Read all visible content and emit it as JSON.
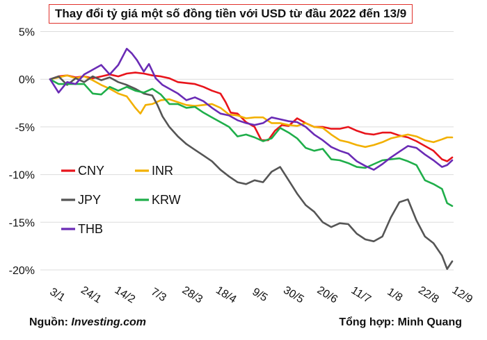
{
  "title": "Thay đổi tỷ giá một số đồng tiền với USD từ đầu 2022 đến 13/9",
  "footer": {
    "source_label": "Nguồn: ",
    "source_name": "Investing.com",
    "credit": "Tổng hợp: Minh Quang"
  },
  "chart_data": {
    "type": "line",
    "title": "Thay đổi tỷ giá một số đồng tiền với USD từ đầu 2022 đến 13/9",
    "xlabel": "",
    "ylabel": "",
    "x_ticks": [
      "3/1",
      "24/1",
      "14/2",
      "7/3",
      "28/3",
      "18/4",
      "9/5",
      "30/5",
      "20/6",
      "11/7",
      "1/8",
      "22/8",
      "12/9"
    ],
    "y_ticks": [
      "5%",
      "0%",
      "-5%",
      "-10%",
      "-15%",
      "-20%"
    ],
    "ylim": [
      -21,
      5
    ],
    "grid": "horizontal",
    "legend_position": "lower-left",
    "series": [
      {
        "name": "CNY",
        "color": "#e8141b",
        "points": [
          [
            0,
            0
          ],
          [
            5,
            0.3
          ],
          [
            10,
            0.4
          ],
          [
            15,
            0.2
          ],
          [
            20,
            0.3
          ],
          [
            25,
            0.1
          ],
          [
            30,
            0.3
          ],
          [
            35,
            0.5
          ],
          [
            40,
            0.3
          ],
          [
            45,
            0.6
          ],
          [
            50,
            0.7
          ],
          [
            55,
            0.6
          ],
          [
            60,
            0.4
          ],
          [
            65,
            0.3
          ],
          [
            70,
            0.1
          ],
          [
            75,
            -0.3
          ],
          [
            80,
            -0.4
          ],
          [
            85,
            -0.5
          ],
          [
            90,
            -0.8
          ],
          [
            95,
            -1.2
          ],
          [
            100,
            -1.5
          ],
          [
            103,
            -2.4
          ],
          [
            106,
            -3.5
          ],
          [
            110,
            -3.6
          ],
          [
            115,
            -4.5
          ],
          [
            120,
            -5.0
          ],
          [
            124,
            -6.4
          ],
          [
            128,
            -6.4
          ],
          [
            132,
            -5.4
          ],
          [
            136,
            -4.8
          ],
          [
            140,
            -4.9
          ],
          [
            145,
            -4.1
          ],
          [
            150,
            -4.6
          ],
          [
            155,
            -5.0
          ],
          [
            160,
            -5.0
          ],
          [
            165,
            -5.2
          ],
          [
            170,
            -5.2
          ],
          [
            175,
            -5.0
          ],
          [
            180,
            -5.4
          ],
          [
            185,
            -5.7
          ],
          [
            190,
            -5.8
          ],
          [
            195,
            -5.6
          ],
          [
            200,
            -5.6
          ],
          [
            205,
            -5.9
          ],
          [
            210,
            -6.1
          ],
          [
            215,
            -6.5
          ],
          [
            220,
            -7.0
          ],
          [
            225,
            -7.5
          ],
          [
            230,
            -8.4
          ],
          [
            233,
            -8.6
          ],
          [
            236,
            -8.2
          ]
        ]
      },
      {
        "name": "INR",
        "color": "#f2b000",
        "points": [
          [
            0,
            0
          ],
          [
            5,
            0.2
          ],
          [
            10,
            0.4
          ],
          [
            15,
            0.1
          ],
          [
            20,
            0.3
          ],
          [
            25,
            -0.1
          ],
          [
            30,
            -0.6
          ],
          [
            35,
            -1.0
          ],
          [
            40,
            -1.5
          ],
          [
            45,
            -1.8
          ],
          [
            50,
            -3.0
          ],
          [
            53,
            -3.6
          ],
          [
            56,
            -2.7
          ],
          [
            60,
            -2.6
          ],
          [
            65,
            -2.2
          ],
          [
            70,
            -2.1
          ],
          [
            75,
            -2.4
          ],
          [
            80,
            -2.7
          ],
          [
            85,
            -2.8
          ],
          [
            90,
            -2.7
          ],
          [
            95,
            -2.6
          ],
          [
            100,
            -3.0
          ],
          [
            105,
            -3.7
          ],
          [
            110,
            -3.8
          ],
          [
            115,
            -4.1
          ],
          [
            120,
            -4.0
          ],
          [
            125,
            -4.0
          ],
          [
            130,
            -4.6
          ],
          [
            135,
            -4.6
          ],
          [
            140,
            -4.8
          ],
          [
            145,
            -4.9
          ],
          [
            150,
            -4.6
          ],
          [
            155,
            -5.0
          ],
          [
            160,
            -5.1
          ],
          [
            165,
            -5.8
          ],
          [
            170,
            -6.4
          ],
          [
            175,
            -6.6
          ],
          [
            180,
            -6.9
          ],
          [
            185,
            -7.1
          ],
          [
            190,
            -6.9
          ],
          [
            195,
            -6.6
          ],
          [
            200,
            -6.2
          ],
          [
            205,
            -6.0
          ],
          [
            210,
            -5.8
          ],
          [
            215,
            -6.0
          ],
          [
            220,
            -6.4
          ],
          [
            225,
            -6.6
          ],
          [
            230,
            -6.3
          ],
          [
            233,
            -6.1
          ],
          [
            236,
            -6.1
          ]
        ]
      },
      {
        "name": "JPY",
        "color": "#555555",
        "points": [
          [
            0,
            0
          ],
          [
            5,
            0.3
          ],
          [
            10,
            -0.6
          ],
          [
            15,
            0.1
          ],
          [
            20,
            -0.3
          ],
          [
            25,
            0.3
          ],
          [
            30,
            -0.1
          ],
          [
            35,
            0.2
          ],
          [
            40,
            -0.3
          ],
          [
            45,
            -0.6
          ],
          [
            50,
            -1.0
          ],
          [
            55,
            -1.5
          ],
          [
            60,
            -1.7
          ],
          [
            63,
            -2.7
          ],
          [
            66,
            -3.9
          ],
          [
            70,
            -5.0
          ],
          [
            75,
            -6.0
          ],
          [
            80,
            -6.8
          ],
          [
            85,
            -7.4
          ],
          [
            90,
            -8.0
          ],
          [
            95,
            -8.6
          ],
          [
            100,
            -9.5
          ],
          [
            105,
            -10.2
          ],
          [
            110,
            -10.8
          ],
          [
            115,
            -11.0
          ],
          [
            120,
            -10.6
          ],
          [
            125,
            -10.8
          ],
          [
            130,
            -9.7
          ],
          [
            135,
            -9.2
          ],
          [
            140,
            -10.6
          ],
          [
            145,
            -12.0
          ],
          [
            150,
            -13.2
          ],
          [
            155,
            -13.9
          ],
          [
            160,
            -15.0
          ],
          [
            165,
            -15.5
          ],
          [
            170,
            -15.1
          ],
          [
            175,
            -15.2
          ],
          [
            180,
            -16.2
          ],
          [
            185,
            -16.8
          ],
          [
            190,
            -17.0
          ],
          [
            195,
            -16.5
          ],
          [
            200,
            -14.5
          ],
          [
            205,
            -12.9
          ],
          [
            210,
            -12.6
          ],
          [
            215,
            -14.8
          ],
          [
            220,
            -16.5
          ],
          [
            225,
            -17.2
          ],
          [
            230,
            -18.5
          ],
          [
            233,
            -19.9
          ],
          [
            236,
            -19.1
          ]
        ]
      },
      {
        "name": "KRW",
        "color": "#1fae4a",
        "points": [
          [
            0,
            0
          ],
          [
            5,
            -0.5
          ],
          [
            10,
            -0.5
          ],
          [
            15,
            -0.5
          ],
          [
            20,
            -0.5
          ],
          [
            25,
            -1.5
          ],
          [
            30,
            -1.6
          ],
          [
            35,
            -0.8
          ],
          [
            40,
            -1.2
          ],
          [
            45,
            -0.8
          ],
          [
            50,
            -1.2
          ],
          [
            55,
            -1.4
          ],
          [
            60,
            -1.0
          ],
          [
            65,
            -1.6
          ],
          [
            70,
            -2.6
          ],
          [
            75,
            -2.6
          ],
          [
            80,
            -3.0
          ],
          [
            85,
            -2.9
          ],
          [
            90,
            -3.5
          ],
          [
            95,
            -4.0
          ],
          [
            100,
            -4.5
          ],
          [
            105,
            -5.0
          ],
          [
            110,
            -6.0
          ],
          [
            115,
            -5.8
          ],
          [
            120,
            -6.1
          ],
          [
            125,
            -6.5
          ],
          [
            130,
            -6.2
          ],
          [
            135,
            -5.1
          ],
          [
            140,
            -5.6
          ],
          [
            145,
            -6.2
          ],
          [
            150,
            -7.2
          ],
          [
            155,
            -7.5
          ],
          [
            160,
            -7.3
          ],
          [
            165,
            -8.4
          ],
          [
            170,
            -8.5
          ],
          [
            175,
            -8.8
          ],
          [
            180,
            -9.2
          ],
          [
            185,
            -9.3
          ],
          [
            190,
            -8.9
          ],
          [
            195,
            -8.5
          ],
          [
            200,
            -8.4
          ],
          [
            205,
            -8.3
          ],
          [
            210,
            -8.6
          ],
          [
            215,
            -9.0
          ],
          [
            220,
            -10.6
          ],
          [
            225,
            -11.0
          ],
          [
            230,
            -11.5
          ],
          [
            233,
            -13.0
          ],
          [
            236,
            -13.3
          ]
        ]
      },
      {
        "name": "THB",
        "color": "#6a2bb5",
        "points": [
          [
            0,
            0
          ],
          [
            5,
            -1.4
          ],
          [
            10,
            -0.3
          ],
          [
            15,
            -0.5
          ],
          [
            20,
            0.5
          ],
          [
            25,
            1.0
          ],
          [
            30,
            1.5
          ],
          [
            35,
            0.5
          ],
          [
            40,
            1.5
          ],
          [
            45,
            3.2
          ],
          [
            48,
            2.7
          ],
          [
            51,
            2.0
          ],
          [
            55,
            0.8
          ],
          [
            58,
            1.6
          ],
          [
            62,
            0.1
          ],
          [
            66,
            -0.6
          ],
          [
            70,
            -1.0
          ],
          [
            75,
            -1.5
          ],
          [
            80,
            -2.2
          ],
          [
            85,
            -1.9
          ],
          [
            90,
            -2.3
          ],
          [
            95,
            -3.0
          ],
          [
            100,
            -3.6
          ],
          [
            105,
            -3.8
          ],
          [
            110,
            -4.3
          ],
          [
            115,
            -4.6
          ],
          [
            120,
            -4.8
          ],
          [
            125,
            -4.6
          ],
          [
            130,
            -4.0
          ],
          [
            135,
            -4.2
          ],
          [
            140,
            -4.4
          ],
          [
            145,
            -4.5
          ],
          [
            150,
            -5.0
          ],
          [
            155,
            -5.8
          ],
          [
            160,
            -6.4
          ],
          [
            165,
            -7.1
          ],
          [
            170,
            -7.5
          ],
          [
            175,
            -7.8
          ],
          [
            180,
            -8.6
          ],
          [
            185,
            -9.1
          ],
          [
            190,
            -9.5
          ],
          [
            195,
            -8.9
          ],
          [
            200,
            -8.2
          ],
          [
            205,
            -7.6
          ],
          [
            210,
            -7.0
          ],
          [
            215,
            -7.2
          ],
          [
            220,
            -7.9
          ],
          [
            225,
            -8.5
          ],
          [
            230,
            -9.2
          ],
          [
            233,
            -9.0
          ],
          [
            236,
            -8.5
          ]
        ]
      }
    ]
  }
}
